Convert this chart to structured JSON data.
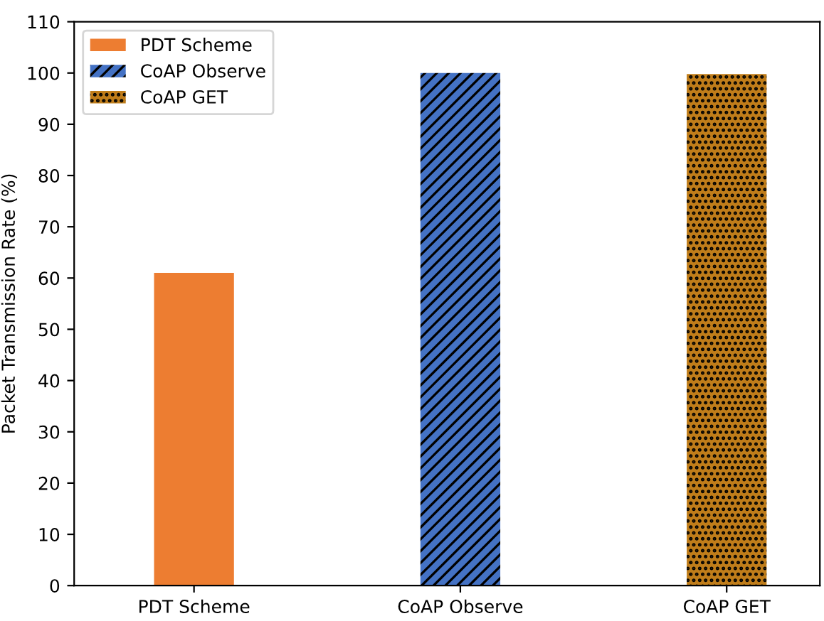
{
  "chart_data": {
    "type": "bar",
    "ylabel": "Packet Transmission Rate (%)",
    "categories": [
      "PDT Scheme",
      "CoAP Observe",
      "CoAP GET"
    ],
    "series": [
      {
        "name": "PDT Scheme",
        "color": "#ed7d31",
        "values": [
          61,
          null,
          null
        ]
      },
      {
        "name": "CoAP Observe",
        "color": "#4472c4",
        "values": [
          null,
          100,
          null
        ]
      },
      {
        "name": "CoAP GET",
        "color": "#c07d1a",
        "values": [
          null,
          null,
          99.8
        ]
      }
    ],
    "ylim": [
      0,
      110
    ],
    "yticks": [
      0,
      10,
      20,
      30,
      40,
      50,
      60,
      70,
      80,
      90,
      100,
      110
    ],
    "grid": false,
    "legend": "top left"
  }
}
